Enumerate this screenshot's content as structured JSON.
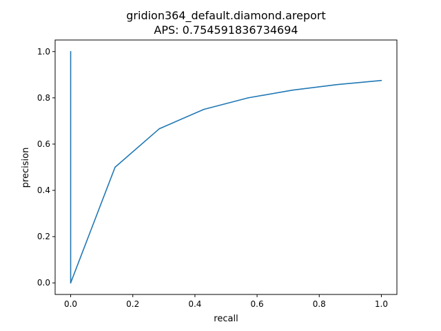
{
  "chart_data": {
    "type": "line",
    "title": "gridion364_default.diamond.areport",
    "subtitle": "APS: 0.754591836734694",
    "xlabel": "recall",
    "ylabel": "precision",
    "xlim": [
      -0.05,
      1.05
    ],
    "ylim": [
      -0.05,
      1.05
    ],
    "xticks": [
      "0.0",
      "0.2",
      "0.4",
      "0.6",
      "0.8",
      "1.0"
    ],
    "yticks": [
      "0.0",
      "0.2",
      "0.4",
      "0.6",
      "0.8",
      "1.0"
    ],
    "grid": false,
    "series": [
      {
        "color": "#1f77b4",
        "x": [
          0.0,
          0.0,
          0.0,
          0.1429,
          0.2857,
          0.4286,
          0.5714,
          0.7143,
          0.8571,
          1.0
        ],
        "y": [
          1.0,
          0.0,
          0.0,
          0.5,
          0.6667,
          0.75,
          0.8,
          0.8333,
          0.8571,
          0.875
        ]
      }
    ]
  }
}
